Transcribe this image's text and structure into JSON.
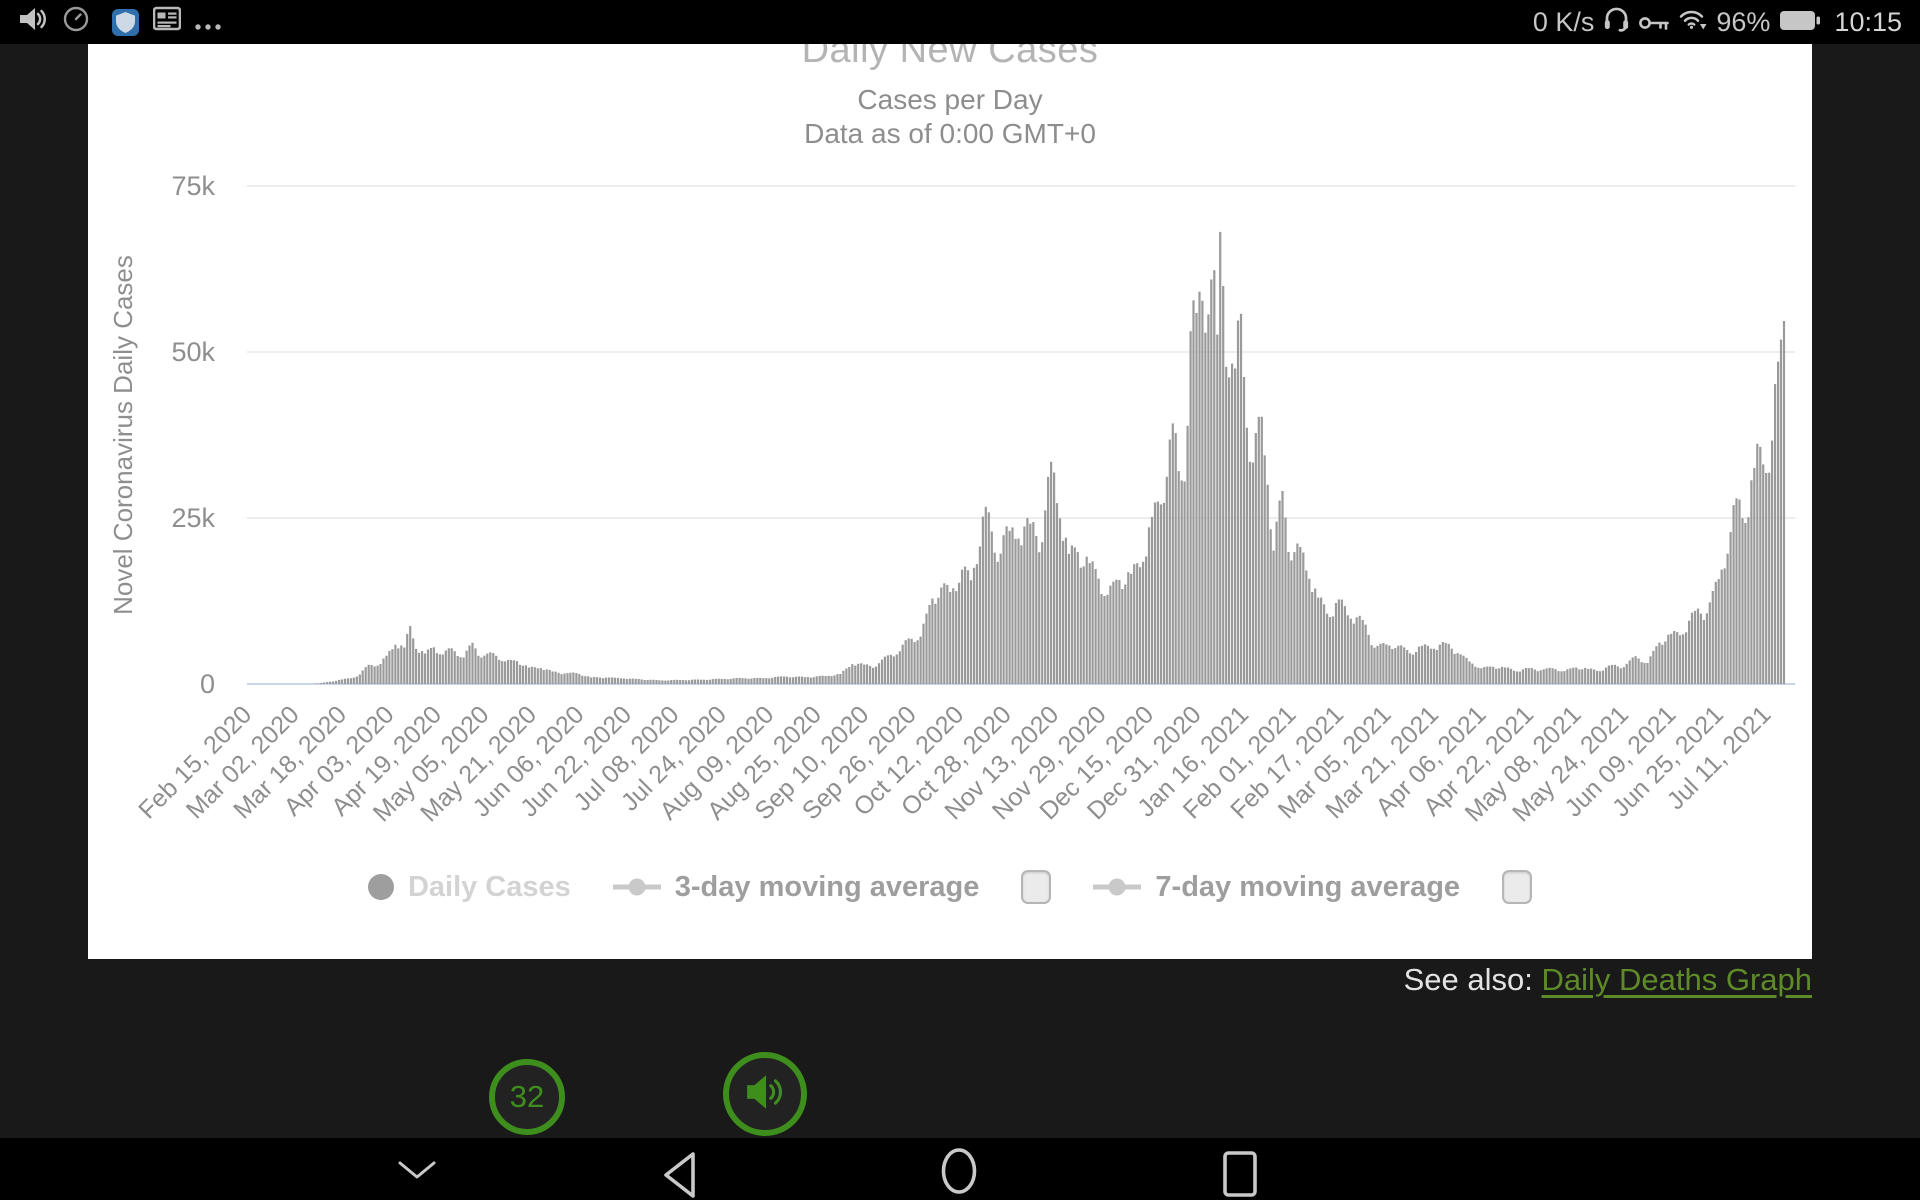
{
  "status_bar": {
    "time": "10:15",
    "net_speed": "0 K/s",
    "battery_percent": "96%",
    "left_icons": [
      "volume-icon",
      "alarm-clock-icon",
      "shield-app-icon",
      "newsfeed-app-icon",
      "more-notifications-icon"
    ],
    "right_icons": [
      "headset-icon",
      "vpn-key-icon",
      "wifi-icon",
      "battery-icon"
    ]
  },
  "chart": {
    "title": "Daily New Cases",
    "subtitle_line1": "Cases per Day",
    "subtitle_line2": "Data as of 0:00 GMT+0",
    "legend": {
      "daily_cases": "Daily Cases",
      "avg3": "3-day moving average",
      "avg7": "7-day moving average",
      "avg3_checked": false,
      "avg7_checked": false
    }
  },
  "see_also": {
    "prefix": "See also: ",
    "link_text": "Daily Deaths Graph",
    "link_color": "#5e8b28"
  },
  "overlay": {
    "counter_label": "32",
    "accent_color": "#3e8e1d"
  },
  "chart_data": {
    "type": "bar",
    "title": "Daily New Cases",
    "subtitle": "Cases per Day — Data as of 0:00 GMT+0",
    "ylabel": "Novel Coronavirus Daily Cases",
    "xlabel": "",
    "ylim": [
      0,
      75000
    ],
    "grid": true,
    "bar_color": "#9a9a9a",
    "series": [
      {
        "name": "Daily Cases",
        "visible": true
      },
      {
        "name": "3-day moving average",
        "visible": false
      },
      {
        "name": "7-day moving average",
        "visible": false
      }
    ],
    "start_date": "2020-02-15",
    "end_date": "2021-07-17",
    "x_tick_interval_days": 16,
    "x_tick_labels": [
      "Feb 15, 2020",
      "Mar 02, 2020",
      "Mar 18, 2020",
      "Apr 03, 2020",
      "Apr 19, 2020",
      "May 05, 2020",
      "May 21, 2020",
      "Jun 06, 2020",
      "Jun 22, 2020",
      "Jul 08, 2020",
      "Jul 24, 2020",
      "Aug 09, 2020",
      "Aug 25, 2020",
      "Sep 10, 2020",
      "Sep 26, 2020",
      "Oct 12, 2020",
      "Oct 28, 2020",
      "Nov 13, 2020",
      "Nov 29, 2020",
      "Dec 15, 2020",
      "Dec 31, 2020",
      "Jan 16, 2021",
      "Feb 01, 2021",
      "Feb 17, 2021",
      "Mar 05, 2021",
      "Mar 21, 2021",
      "Apr 06, 2021",
      "Apr 22, 2021",
      "May 08, 2021",
      "May 24, 2021",
      "Jun 09, 2021",
      "Jun 25, 2021",
      "Jul 11, 2021"
    ],
    "y_ticks": [
      {
        "label": "0",
        "value": 0
      },
      {
        "label": "25k",
        "value": 25000
      },
      {
        "label": "50k",
        "value": 50000
      },
      {
        "label": "75k",
        "value": 75000
      }
    ],
    "anchors": [
      [
        "2020-02-15",
        0
      ],
      [
        "2020-03-01",
        10
      ],
      [
        "2020-03-06",
        50
      ],
      [
        "2020-03-10",
        80
      ],
      [
        "2020-03-14",
        340
      ],
      [
        "2020-03-18",
        680
      ],
      [
        "2020-03-22",
        970
      ],
      [
        "2020-03-24",
        1430
      ],
      [
        "2020-03-27",
        2890
      ],
      [
        "2020-03-31",
        3010
      ],
      [
        "2020-04-02",
        4250
      ],
      [
        "2020-04-05",
        5900
      ],
      [
        "2020-04-08",
        5500
      ],
      [
        "2020-04-10",
        8730
      ],
      [
        "2020-04-12",
        5290
      ],
      [
        "2020-04-15",
        4600
      ],
      [
        "2020-04-18",
        5520
      ],
      [
        "2020-04-21",
        4450
      ],
      [
        "2020-04-24",
        5390
      ],
      [
        "2020-04-28",
        3990
      ],
      [
        "2020-05-01",
        6200
      ],
      [
        "2020-05-04",
        3990
      ],
      [
        "2020-05-08",
        4650
      ],
      [
        "2020-05-12",
        3400
      ],
      [
        "2020-05-16",
        3450
      ],
      [
        "2020-05-20",
        2470
      ],
      [
        "2020-05-24",
        2400
      ],
      [
        "2020-05-28",
        1880
      ],
      [
        "2020-06-01",
        1570
      ],
      [
        "2020-06-05",
        1650
      ],
      [
        "2020-06-10",
        1000
      ],
      [
        "2020-06-15",
        970
      ],
      [
        "2020-06-21",
        830
      ],
      [
        "2020-06-27",
        700
      ],
      [
        "2020-07-03",
        550
      ],
      [
        "2020-07-10",
        600
      ],
      [
        "2020-07-17",
        650
      ],
      [
        "2020-07-24",
        770
      ],
      [
        "2020-07-31",
        880
      ],
      [
        "2020-08-07",
        870
      ],
      [
        "2020-08-14",
        1130
      ],
      [
        "2020-08-21",
        1030
      ],
      [
        "2020-08-28",
        1200
      ],
      [
        "2020-09-02",
        1510
      ],
      [
        "2020-09-06",
        2990
      ],
      [
        "2020-09-10",
        2920
      ],
      [
        "2020-09-14",
        2620
      ],
      [
        "2020-09-18",
        4320
      ],
      [
        "2020-09-22",
        4930
      ],
      [
        "2020-09-25",
        6870
      ],
      [
        "2020-09-29",
        7140
      ],
      [
        "2020-10-03",
        12870
      ],
      [
        "2020-10-06",
        14540
      ],
      [
        "2020-10-09",
        13860
      ],
      [
        "2020-10-13",
        17230
      ],
      [
        "2020-10-16",
        15640
      ],
      [
        "2020-10-21",
        26690
      ],
      [
        "2020-10-24",
        19790
      ],
      [
        "2020-10-29",
        23060
      ],
      [
        "2020-11-01",
        21910
      ],
      [
        "2020-11-05",
        24140
      ],
      [
        "2020-11-09",
        21350
      ],
      [
        "2020-11-12",
        33470
      ],
      [
        "2020-11-15",
        24960
      ],
      [
        "2020-11-18",
        19610
      ],
      [
        "2020-11-21",
        19870
      ],
      [
        "2020-11-25",
        18210
      ],
      [
        "2020-11-28",
        15870
      ],
      [
        "2020-12-01",
        13430
      ],
      [
        "2020-12-05",
        15660
      ],
      [
        "2020-12-09",
        16580
      ],
      [
        "2020-12-13",
        18400
      ],
      [
        "2020-12-16",
        25160
      ],
      [
        "2020-12-19",
        27050
      ],
      [
        "2020-12-22",
        36800
      ],
      [
        "2020-12-23",
        39240
      ],
      [
        "2020-12-25",
        32060
      ],
      [
        "2020-12-27",
        30500
      ],
      [
        "2020-12-29",
        53130
      ],
      [
        "2020-12-31",
        55890
      ],
      [
        "2021-01-02",
        57720
      ],
      [
        "2021-01-05",
        60920
      ],
      [
        "2021-01-06",
        62320
      ],
      [
        "2021-01-07",
        52620
      ],
      [
        "2021-01-08",
        68090
      ],
      [
        "2021-01-09",
        59940
      ],
      [
        "2021-01-11",
        46170
      ],
      [
        "2021-01-13",
        47520
      ],
      [
        "2021-01-15",
        55760
      ],
      [
        "2021-01-17",
        38600
      ],
      [
        "2021-01-19",
        33360
      ],
      [
        "2021-01-22",
        40260
      ],
      [
        "2021-01-24",
        30000
      ],
      [
        "2021-01-26",
        20090
      ],
      [
        "2021-01-29",
        29060
      ],
      [
        "2021-02-01",
        18610
      ],
      [
        "2021-02-04",
        20630
      ],
      [
        "2021-02-07",
        15850
      ],
      [
        "2021-02-10",
        13010
      ],
      [
        "2021-02-14",
        10070
      ],
      [
        "2021-02-17",
        12720
      ],
      [
        "2021-02-21",
        9830
      ],
      [
        "2021-02-25",
        9640
      ],
      [
        "2021-03-01",
        5460
      ],
      [
        "2021-03-05",
        5950
      ],
      [
        "2021-03-09",
        5770
      ],
      [
        "2021-03-13",
        4620
      ],
      [
        "2021-03-17",
        5760
      ],
      [
        "2021-03-21",
        5310
      ],
      [
        "2021-03-25",
        6190
      ],
      [
        "2021-03-29",
        4650
      ],
      [
        "2021-04-02",
        3400
      ],
      [
        "2021-04-06",
        2360
      ],
      [
        "2021-04-10",
        2590
      ],
      [
        "2021-04-14",
        2490
      ],
      [
        "2021-04-18",
        1880
      ],
      [
        "2021-04-22",
        2400
      ],
      [
        "2021-04-26",
        2060
      ],
      [
        "2021-04-30",
        2380
      ],
      [
        "2021-05-04",
        1950
      ],
      [
        "2021-05-08",
        2490
      ],
      [
        "2021-05-12",
        2280
      ],
      [
        "2021-05-16",
        1930
      ],
      [
        "2021-05-20",
        2870
      ],
      [
        "2021-05-24",
        2540
      ],
      [
        "2021-05-28",
        4180
      ],
      [
        "2021-06-01",
        3160
      ],
      [
        "2021-06-05",
        6240
      ],
      [
        "2021-06-09",
        7540
      ],
      [
        "2021-06-13",
        7490
      ],
      [
        "2021-06-17",
        11010
      ],
      [
        "2021-06-21",
        10630
      ],
      [
        "2021-06-25",
        15810
      ],
      [
        "2021-06-29",
        22870
      ],
      [
        "2021-07-01",
        27960
      ],
      [
        "2021-07-04",
        24250
      ],
      [
        "2021-07-07",
        32550
      ],
      [
        "2021-07-09",
        35710
      ],
      [
        "2021-07-11",
        31770
      ],
      [
        "2021-07-13",
        36660
      ],
      [
        "2021-07-15",
        48550
      ],
      [
        "2021-07-16",
        51870
      ],
      [
        "2021-07-17",
        54670
      ]
    ],
    "weekday_factors": [
      0.9,
      0.93,
      1.03,
      1.06,
      1.06,
      1.04,
      0.98
    ]
  }
}
